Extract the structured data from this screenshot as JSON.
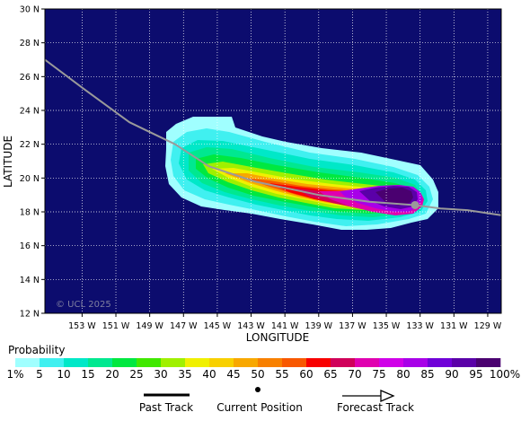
{
  "map": {
    "xlabel": "LONGITUDE",
    "ylabel": "LATITUDE",
    "lat_ticks": [
      "12 N",
      "14 N",
      "16 N",
      "18 N",
      "20 N",
      "22 N",
      "24 N",
      "26 N",
      "28 N",
      "30 N"
    ],
    "lat_values": [
      12,
      14,
      16,
      18,
      20,
      22,
      24,
      26,
      28,
      30
    ],
    "lon_ticks": [
      "153 W",
      "151 W",
      "149 W",
      "147 W",
      "145 W",
      "143 W",
      "141 W",
      "139 W",
      "137 W",
      "135 W",
      "133 W",
      "131 W",
      "129 W"
    ],
    "lon_values": [
      -153,
      -151,
      -149,
      -147,
      -145,
      -143,
      -141,
      -139,
      -137,
      -135,
      -133,
      -131,
      -129
    ],
    "lon_range": [
      -155.2,
      -128.2
    ],
    "lat_range": [
      12,
      30
    ],
    "grid": true,
    "copyright": "© UCL 2025",
    "background_color": "#0c0c6e",
    "track_color": "#9a9a9a",
    "track": [
      [
        -155.2,
        27.0
      ],
      [
        -152.8,
        25.2
      ],
      [
        -150.2,
        23.3
      ],
      [
        -147.5,
        22.0
      ],
      [
        -145.5,
        20.7
      ],
      [
        -142.8,
        19.8
      ],
      [
        -139.0,
        19.0
      ],
      [
        -136.0,
        18.6
      ],
      [
        -133.3,
        18.4
      ],
      [
        -131.8,
        18.2
      ],
      [
        -130.2,
        18.1
      ],
      [
        -128.2,
        17.8
      ]
    ],
    "current_position": {
      "lon": -133.3,
      "lat": 18.4
    }
  },
  "probability": {
    "title": "Probability",
    "labels": [
      "1%",
      "5",
      "10",
      "15",
      "20",
      "25",
      "30",
      "35",
      "40",
      "45",
      "50",
      "55",
      "60",
      "65",
      "70",
      "75",
      "80",
      "85",
      "90",
      "95",
      "100%"
    ],
    "colors": [
      "#a0ffff",
      "#40f0f0",
      "#00e8c8",
      "#00e890",
      "#00e840",
      "#40e800",
      "#a0f000",
      "#f0f000",
      "#f8d000",
      "#f8a800",
      "#f88000",
      "#f85800",
      "#f80000",
      "#d0005a",
      "#e000b0",
      "#d000e8",
      "#a800e8",
      "#7000d8",
      "#5a00a8",
      "#4a0070"
    ]
  },
  "legend": {
    "past_track": "Past Track",
    "current_position": "Current Position",
    "forecast_track": "Forecast Track"
  }
}
